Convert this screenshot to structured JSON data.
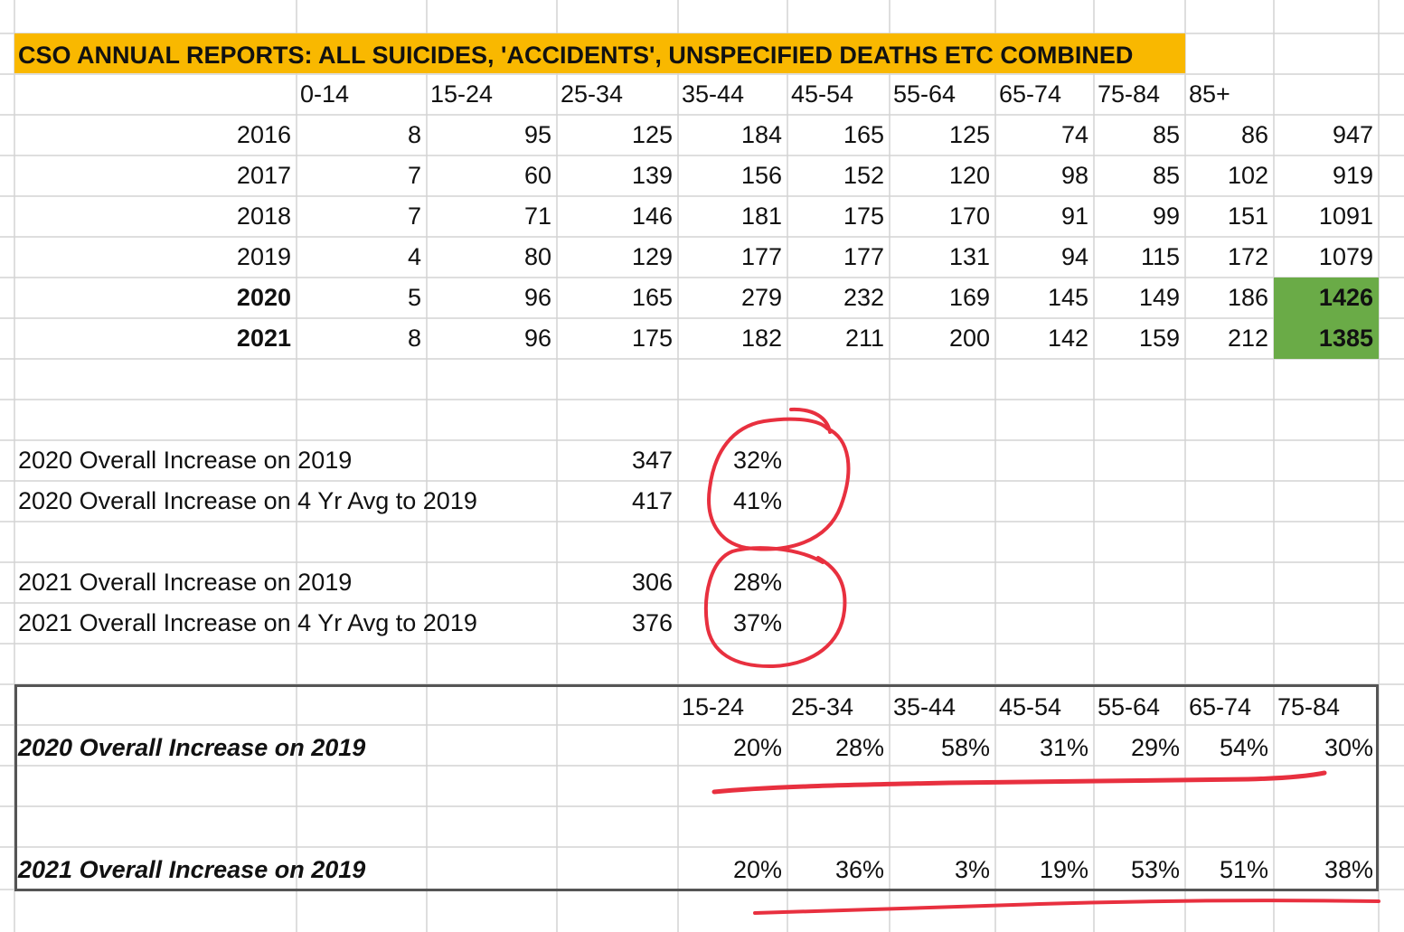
{
  "title": "CSO ANNUAL REPORTS: ALL SUICIDES, 'ACCIDENTS', UNSPECIFIED DEATHS ETC COMBINED",
  "age_headers": [
    "0-14",
    "15-24",
    "25-34",
    "35-44",
    "45-54",
    "55-64",
    "65-74",
    "75-84",
    "85+"
  ],
  "rows": [
    {
      "year": "2016",
      "bold": false,
      "values": [
        "8",
        "95",
        "125",
        "184",
        "165",
        "125",
        "74",
        "85",
        "86"
      ],
      "total": "947",
      "highlight": false
    },
    {
      "year": "2017",
      "bold": false,
      "values": [
        "7",
        "60",
        "139",
        "156",
        "152",
        "120",
        "98",
        "85",
        "102"
      ],
      "total": "919",
      "highlight": false
    },
    {
      "year": "2018",
      "bold": false,
      "values": [
        "7",
        "71",
        "146",
        "181",
        "175",
        "170",
        "91",
        "99",
        "151"
      ],
      "total": "1091",
      "highlight": false
    },
    {
      "year": "2019",
      "bold": false,
      "values": [
        "4",
        "80",
        "129",
        "177",
        "177",
        "131",
        "94",
        "115",
        "172"
      ],
      "total": "1079",
      "highlight": false
    },
    {
      "year": "2020",
      "bold": true,
      "values": [
        "5",
        "96",
        "165",
        "279",
        "232",
        "169",
        "145",
        "149",
        "186"
      ],
      "total": "1426",
      "highlight": true
    },
    {
      "year": "2021",
      "bold": true,
      "values": [
        "8",
        "96",
        "175",
        "182",
        "211",
        "200",
        "142",
        "159",
        "212"
      ],
      "total": "1385",
      "highlight": true
    }
  ],
  "increases": [
    {
      "label": "2020 Overall Increase on 2019",
      "value": "347",
      "pct": "32%"
    },
    {
      "label": "2020 Overall Increase on 4 Yr Avg to 2019",
      "value": "417",
      "pct": "41%"
    },
    {
      "label": "2021 Overall Increase on 2019",
      "value": "306",
      "pct": "28%"
    },
    {
      "label": "2021 Overall Increase on 4 Yr Avg to 2019",
      "value": "376",
      "pct": "37%"
    }
  ],
  "summary": {
    "headers": [
      "15-24",
      "25-34",
      "35-44",
      "45-54",
      "55-64",
      "65-74",
      "75-84"
    ],
    "rows": [
      {
        "label": "2020 Overall Increase on 2019",
        "values": [
          "20%",
          "28%",
          "58%",
          "31%",
          "29%",
          "54%",
          "30%"
        ]
      },
      {
        "label": "2021 Overall Increase on 2019",
        "values": [
          "20%",
          "36%",
          "3%",
          "19%",
          "53%",
          "51%",
          "38%"
        ]
      }
    ]
  },
  "colors": {
    "title_fill": "#f9b800",
    "highlight_fill": "#6aab47",
    "annotation_ink": "#e8303f",
    "gridline": "#d4d4d4"
  }
}
